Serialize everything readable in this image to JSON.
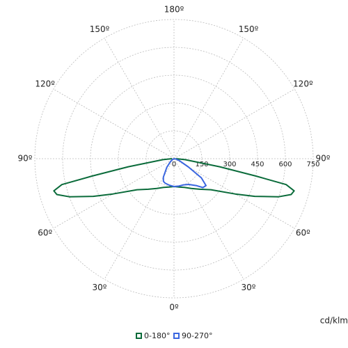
{
  "chart_data": {
    "type": "polar",
    "rlim": [
      0,
      750
    ],
    "rticks": [
      0,
      150,
      300,
      450,
      600,
      750
    ],
    "angle_ticks": [
      {
        "value": 0,
        "label": "0º"
      },
      {
        "value": 30,
        "label": "30º"
      },
      {
        "value": -30,
        "label": "30º"
      },
      {
        "value": 60,
        "label": "60º"
      },
      {
        "value": -60,
        "label": "60º"
      },
      {
        "value": 90,
        "label": "90º"
      },
      {
        "value": -90,
        "label": "90º"
      },
      {
        "value": 120,
        "label": "120º"
      },
      {
        "value": -120,
        "label": "120º"
      },
      {
        "value": 150,
        "label": "150º"
      },
      {
        "value": -150,
        "label": "150º"
      },
      {
        "value": 180,
        "label": "180º"
      }
    ],
    "unit_label": "cd/klm",
    "series": [
      {
        "name": "0-180°",
        "color": "#0a6b3a",
        "angles": [
          -90,
          -85,
          -80,
          -78,
          -77,
          -75,
          -73,
          -70,
          -65,
          -60,
          -50,
          -40,
          -30,
          -20,
          -10,
          0,
          10,
          20,
          30,
          40,
          50,
          60,
          65,
          70,
          73,
          75,
          77,
          78,
          80,
          85,
          90
        ],
        "values": [
          10,
          60,
          250,
          450,
          620,
          670,
          660,
          600,
          480,
          380,
          260,
          215,
          185,
          165,
          155,
          150,
          155,
          165,
          185,
          215,
          260,
          380,
          480,
          600,
          660,
          670,
          620,
          450,
          250,
          60,
          10
        ]
      },
      {
        "name": "90-270°",
        "color": "#3a66e0",
        "angles": [
          -90,
          -60,
          -50,
          -40,
          -30,
          -25,
          -20,
          -10,
          0,
          10,
          20,
          30,
          40,
          45,
          50,
          55,
          60,
          70,
          80,
          90
        ],
        "values": [
          0,
          10,
          25,
          60,
          115,
          135,
          140,
          145,
          150,
          150,
          150,
          160,
          190,
          220,
          225,
          180,
          90,
          30,
          10,
          0
        ]
      }
    ]
  }
}
